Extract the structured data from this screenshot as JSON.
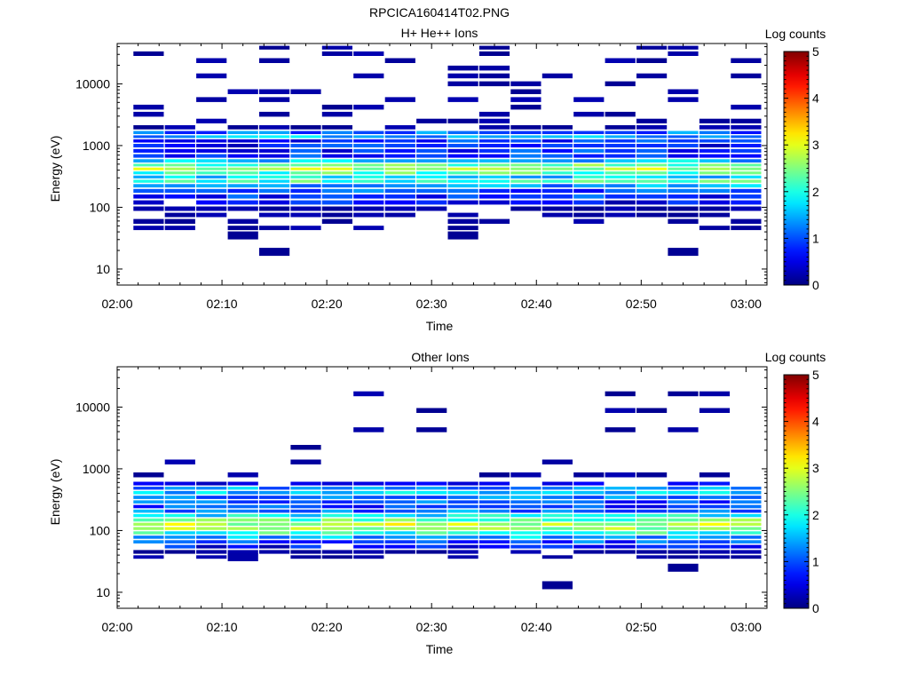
{
  "figure_title": "RPCICA160414T02.PNG",
  "colors": {
    "axis": "#000000",
    "background": "#ffffff",
    "colormap": "jet"
  },
  "chart_data": [
    {
      "type": "heatmap",
      "title": "H+ He++ Ions",
      "xlabel": "Time",
      "ylabel": "Energy (eV)",
      "x_ticks": [
        "02:00",
        "02:10",
        "02:20",
        "02:30",
        "02:40",
        "02:50",
        "03:00"
      ],
      "xlim": [
        "02:00",
        "03:02"
      ],
      "y_scale": "log",
      "y_ticks": [
        10,
        100,
        1000,
        10000
      ],
      "ylim": [
        5.5,
        45000
      ],
      "time_bins": [
        "02:03",
        "02:06",
        "02:09",
        "02:12",
        "02:15",
        "02:18",
        "02:21",
        "02:24",
        "02:27",
        "02:30",
        "02:33",
        "02:36",
        "02:39",
        "02:42",
        "02:45",
        "02:48",
        "02:51",
        "02:54",
        "02:57",
        "03:00"
      ],
      "colorbar": {
        "label": "Log counts",
        "ticks": [
          0,
          1,
          2,
          3,
          4,
          5
        ],
        "range": [
          0,
          5
        ]
      },
      "summary": "Intense band between about 200 and 600 eV (log counts 2 to 3), secondary band near 1300 to 1700 eV, sparse single counts up to about 40000 eV",
      "profile": [
        {
          "energy": 45,
          "level": 0.2
        },
        {
          "energy": 60,
          "level": 0.2
        },
        {
          "energy": 75,
          "level": 0.3
        },
        {
          "energy": 95,
          "level": 0.4
        },
        {
          "energy": 120,
          "level": 0.6
        },
        {
          "energy": 150,
          "level": 0.8
        },
        {
          "energy": 185,
          "level": 1.0
        },
        {
          "energy": 225,
          "level": 1.4
        },
        {
          "energy": 265,
          "level": 2.1
        },
        {
          "energy": 310,
          "level": 1.7
        },
        {
          "energy": 360,
          "level": 2.2
        },
        {
          "energy": 420,
          "level": 2.7
        },
        {
          "energy": 480,
          "level": 2.3
        },
        {
          "energy": 560,
          "level": 1.6
        },
        {
          "energy": 680,
          "level": 0.9
        },
        {
          "energy": 820,
          "level": 0.8
        },
        {
          "energy": 1000,
          "level": 0.7
        },
        {
          "energy": 1200,
          "level": 0.8
        },
        {
          "energy": 1400,
          "level": 1.4
        },
        {
          "energy": 1600,
          "level": 1.1
        },
        {
          "energy": 1950,
          "level": 0.3
        },
        {
          "energy": 2500,
          "level": 0.2
        },
        {
          "energy": 3200,
          "level": 0.15
        },
        {
          "energy": 4200,
          "level": 0.15
        },
        {
          "energy": 5500,
          "level": 0.12
        },
        {
          "energy": 7500,
          "level": 0.12
        },
        {
          "energy": 10000,
          "level": 0.1
        },
        {
          "energy": 13500,
          "level": 0.1
        },
        {
          "energy": 18000,
          "level": 0.1
        },
        {
          "energy": 24000,
          "level": 0.1
        },
        {
          "energy": 31000,
          "level": 0.1
        },
        {
          "energy": 39000,
          "level": 0.1
        }
      ],
      "isolated_bins": [
        {
          "time": "02:15",
          "energy": 19,
          "level": 0.1
        },
        {
          "time": "02:54",
          "energy": 19,
          "level": 0.1
        },
        {
          "time": "02:12",
          "energy": 35,
          "level": 0.1
        },
        {
          "time": "02:33",
          "energy": 35,
          "level": 0.1
        }
      ]
    },
    {
      "type": "heatmap",
      "title": "Other Ions",
      "xlabel": "Time",
      "ylabel": "Energy (eV)",
      "x_ticks": [
        "02:00",
        "02:10",
        "02:20",
        "02:30",
        "02:40",
        "02:50",
        "03:00"
      ],
      "xlim": [
        "02:00",
        "03:02"
      ],
      "y_scale": "log",
      "y_ticks": [
        10,
        100,
        1000,
        10000
      ],
      "ylim": [
        5.5,
        45000
      ],
      "time_bins": [
        "02:03",
        "02:06",
        "02:09",
        "02:12",
        "02:15",
        "02:18",
        "02:21",
        "02:24",
        "02:27",
        "02:30",
        "02:33",
        "02:36",
        "02:39",
        "02:42",
        "02:45",
        "02:48",
        "02:51",
        "02:54",
        "02:57",
        "03:00"
      ],
      "colorbar": {
        "label": "Log counts",
        "ticks": [
          0,
          1,
          2,
          3,
          4,
          5
        ],
        "range": [
          0,
          5
        ]
      },
      "summary": "Intense band between about 90 and 200 eV (log counts 2 to 3), weaker band 200 to 550 eV, sparse single counts up to about 20000 eV",
      "profile": [
        {
          "energy": 37,
          "level": 0.3
        },
        {
          "energy": 45,
          "level": 0.4
        },
        {
          "energy": 55,
          "level": 0.6
        },
        {
          "energy": 66,
          "level": 1.0
        },
        {
          "energy": 78,
          "level": 1.5
        },
        {
          "energy": 92,
          "level": 2.1
        },
        {
          "energy": 108,
          "level": 2.6
        },
        {
          "energy": 126,
          "level": 2.8
        },
        {
          "energy": 148,
          "level": 2.4
        },
        {
          "energy": 175,
          "level": 1.8
        },
        {
          "energy": 205,
          "level": 1.2
        },
        {
          "energy": 245,
          "level": 0.9
        },
        {
          "energy": 290,
          "level": 1.0
        },
        {
          "energy": 345,
          "level": 1.3
        },
        {
          "energy": 410,
          "level": 1.6
        },
        {
          "energy": 490,
          "level": 1.3
        },
        {
          "energy": 560,
          "level": 0.5
        },
        {
          "energy": 720,
          "level": 0.15
        },
        {
          "energy": 1400,
          "level": 0.1
        },
        {
          "energy": 1950,
          "level": 0.1
        },
        {
          "energy": 4600,
          "level": 0.1
        },
        {
          "energy": 8200,
          "level": 0.1
        },
        {
          "energy": 19500,
          "level": 0.1
        }
      ],
      "isolated_bins": [
        {
          "time": "02:42",
          "energy": 13,
          "level": 0.1
        },
        {
          "time": "02:54",
          "energy": 25,
          "level": 0.1
        },
        {
          "time": "02:12",
          "energy": 37,
          "level": 0.2
        }
      ]
    }
  ]
}
